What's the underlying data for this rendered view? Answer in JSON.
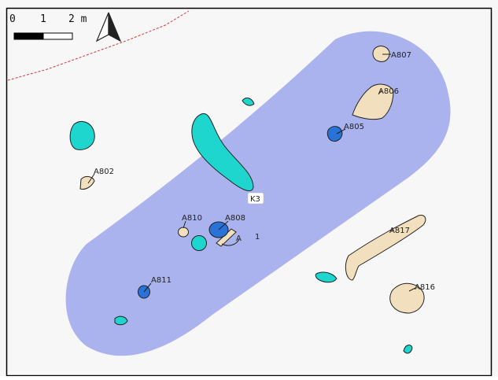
{
  "map": {
    "background": "#f7f7f7",
    "frame_color": "#000000",
    "colors": {
      "buffer": "#aab3ee",
      "feature_tan": "#f2dfbd",
      "feature_cyan": "#1fd6cf",
      "feature_blue": "#2872d8",
      "boundary": "#d23a3a",
      "outline": "#222222"
    },
    "scalebar": {
      "tick_0": "0",
      "tick_1": "1",
      "tick_2": "2 m"
    },
    "north_arrow_icon": "north-arrow-icon",
    "labels": {
      "A807": "A807",
      "A806": "A806",
      "A805": "A805",
      "A802": "A802",
      "K3": "K3",
      "A810": "A810",
      "A808": "A808",
      "A": "A",
      "one": "1",
      "A817": "A817",
      "A811": "A811",
      "A816": "A816"
    }
  }
}
